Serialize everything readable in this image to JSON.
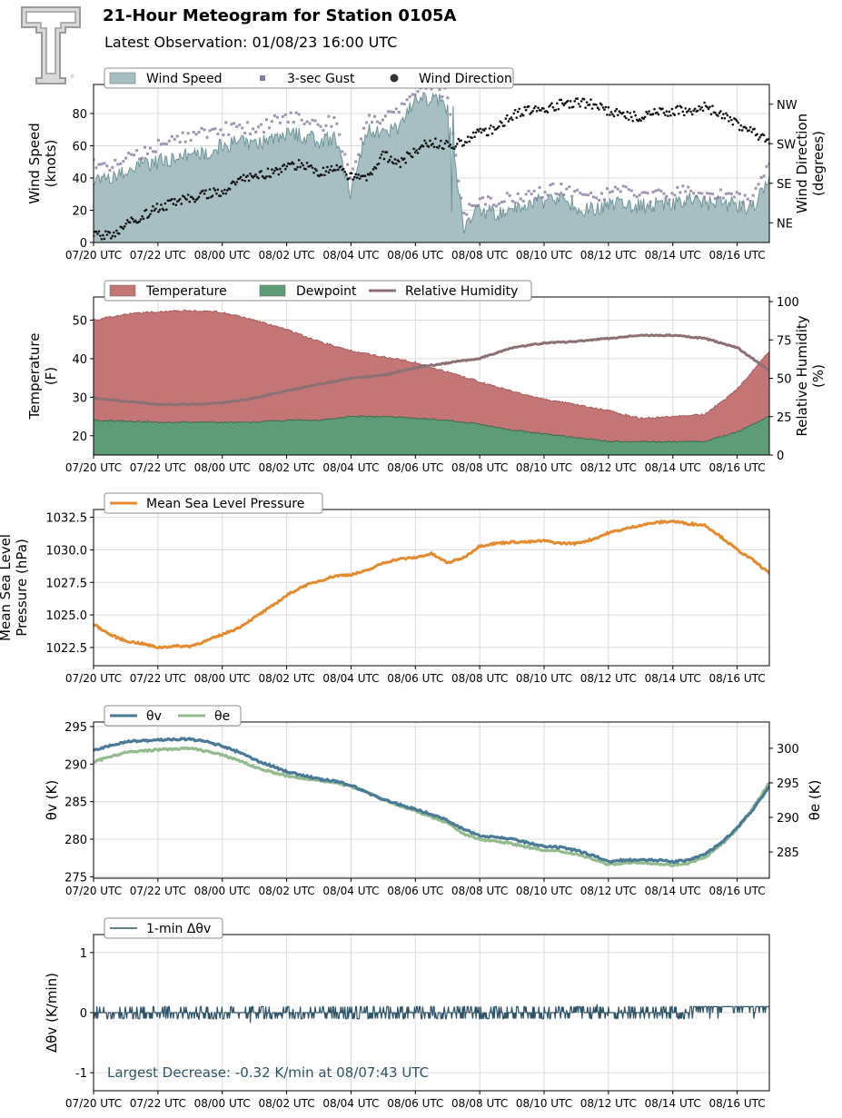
{
  "header": {
    "title": "21-Hour Meteogram for Station 0105A",
    "subtitle": "Latest Observation: 01/08/23 16:00 UTC",
    "logo_icon": "texas-tech-double-t-logo",
    "logo_text": "TT"
  },
  "colors": {
    "wind_speed": "#a7bec3",
    "wind_speed_edge": "#6f9598",
    "gust": "#8a7aa0",
    "wind_dir": "#111111",
    "temperature": "#c47677",
    "temperature_edge": "#a85a5c",
    "dewpoint": "#5e9c77",
    "dewpoint_edge": "#3d6b50",
    "rh": "#8c7073",
    "rh_shadow": "#5e3b3d",
    "mslp": "#e48a2f",
    "theta_v": "#4a7a96",
    "theta_e": "#94bb8e",
    "dtheta": "#2e5266",
    "annotation": "#2e5266",
    "grid": "#dcdcdc"
  },
  "x_ticks": [
    "07/20 UTC",
    "07/22 UTC",
    "08/00 UTC",
    "08/02 UTC",
    "08/04 UTC",
    "08/06 UTC",
    "08/08 UTC",
    "08/10 UTC",
    "08/12 UTC",
    "08/14 UTC",
    "08/16 UTC"
  ],
  "chart_data": [
    {
      "type": "area",
      "name": "wind",
      "ylabel": "Wind Speed\n(knots)",
      "y2label": "Wind Direction\n(degrees)",
      "ylim": [
        0,
        98
      ],
      "yticks": [
        0,
        20,
        40,
        60,
        80
      ],
      "y2ticks": [
        {
          "label": "NE",
          "value": 45
        },
        {
          "label": "SE",
          "value": 135
        },
        {
          "label": "SW",
          "value": 225
        },
        {
          "label": "NW",
          "value": 315
        }
      ],
      "y2lim": [
        0,
        360
      ],
      "legend": [
        "Wind Speed",
        "3-sec Gust",
        "Wind Direction"
      ],
      "legend_placement": "top-left",
      "grid": true,
      "x_hours": [
        19.0,
        19.5,
        20.0,
        20.5,
        21.0,
        21.5,
        22.0,
        22.5,
        23.0,
        23.5,
        24.0,
        24.5,
        25.0,
        25.5,
        26.0,
        26.5,
        27.0,
        27.5,
        28.0,
        28.5,
        29.0,
        29.5,
        30.0,
        30.5,
        31.0,
        31.5,
        32.0,
        32.5,
        33.0,
        33.5,
        34.0,
        34.5,
        35.0,
        35.5,
        36.0,
        36.5,
        37.0,
        37.5,
        38.0,
        38.5,
        39.0,
        39.5,
        40.0
      ],
      "series": [
        {
          "name": "Wind Speed",
          "values": [
            40,
            38,
            44,
            48,
            50,
            52,
            55,
            56,
            60,
            62,
            60,
            64,
            68,
            66,
            63,
            65,
            30,
            70,
            68,
            72,
            88,
            90,
            85,
            10,
            20,
            18,
            22,
            24,
            26,
            28,
            22,
            20,
            24,
            25,
            22,
            24,
            24,
            26,
            25,
            24,
            23,
            22,
            40
          ]
        },
        {
          "name": "3-sec Gust",
          "values": [
            48,
            46,
            52,
            55,
            60,
            62,
            66,
            68,
            70,
            72,
            70,
            74,
            78,
            76,
            73,
            75,
            38,
            78,
            76,
            80,
            95,
            97,
            93,
            18,
            26,
            24,
            28,
            30,
            32,
            34,
            30,
            28,
            30,
            32,
            28,
            30,
            30,
            32,
            31,
            30,
            29,
            28,
            48
          ]
        },
        {
          "name": "Wind Direction",
          "values": [
            20,
            15,
            40,
            60,
            80,
            90,
            100,
            110,
            115,
            140,
            150,
            160,
            170,
            180,
            160,
            170,
            150,
            150,
            200,
            180,
            210,
            230,
            220,
            230,
            250,
            260,
            290,
            300,
            305,
            315,
            320,
            315,
            300,
            290,
            285,
            295,
            300,
            300,
            310,
            290,
            270,
            250,
            230
          ]
        }
      ]
    },
    {
      "type": "area",
      "name": "temperature",
      "ylabel": "Temperature\n(F)",
      "y2label": "Relative Humidity\n(%)",
      "ylim": [
        15,
        56
      ],
      "yticks": [
        20,
        30,
        40,
        50
      ],
      "y2lim": [
        0,
        103
      ],
      "y2ticks": [
        0,
        25,
        50,
        75,
        100
      ],
      "legend": [
        "Temperature",
        "Dewpoint",
        "Relative Humidity"
      ],
      "legend_placement": "top-left",
      "grid": true,
      "x_hours": [
        19.0,
        20.0,
        21.0,
        22.0,
        23.0,
        24.0,
        25.0,
        26.0,
        27.0,
        28.0,
        29.0,
        30.0,
        31.0,
        32.0,
        33.0,
        34.0,
        35.0,
        36.0,
        37.0,
        38.0,
        39.0,
        40.0
      ],
      "series": [
        {
          "name": "Temperature",
          "values": [
            50,
            51.5,
            52.2,
            52.5,
            52,
            50,
            47.5,
            44.5,
            42,
            40.5,
            39,
            36.5,
            34,
            31.5,
            29.5,
            28,
            26.5,
            24.5,
            25,
            25.5,
            32,
            42
          ]
        },
        {
          "name": "Dewpoint",
          "values": [
            24,
            23.8,
            23.5,
            23.5,
            23.5,
            23.5,
            24,
            24,
            25,
            25,
            24.5,
            24,
            23,
            21.5,
            20.5,
            19.5,
            18.5,
            18.5,
            18.5,
            18.5,
            21,
            25
          ]
        },
        {
          "name": "Relative Humidity",
          "values": [
            37,
            35,
            33,
            33,
            34,
            37,
            42,
            46,
            50,
            52,
            57,
            60,
            63,
            70,
            73,
            74,
            76,
            78,
            78,
            76,
            70,
            55
          ]
        }
      ]
    },
    {
      "type": "line",
      "name": "pressure",
      "ylabel": "Mean Sea Level\nPressure (hPa)",
      "ylim": [
        1021.1,
        1033.1
      ],
      "yticks": [
        "1022.5",
        "1025.0",
        "1027.5",
        "1030.0",
        "1032.5"
      ],
      "legend": [
        "Mean Sea Level Pressure"
      ],
      "legend_placement": "top-left",
      "grid": true,
      "x_hours": [
        19.0,
        19.5,
        20.0,
        20.5,
        21.0,
        21.5,
        22.0,
        22.5,
        23.0,
        23.5,
        24.0,
        24.5,
        25.0,
        25.5,
        26.0,
        26.5,
        27.0,
        27.5,
        28.0,
        28.5,
        29.0,
        29.5,
        30.0,
        30.5,
        31.0,
        31.5,
        32.0,
        32.5,
        33.0,
        33.5,
        34.0,
        34.5,
        35.0,
        35.5,
        36.0,
        36.5,
        37.0,
        37.5,
        38.0,
        38.5,
        39.0,
        39.5,
        40.0
      ],
      "series": [
        {
          "name": "Mean Sea Level Pressure",
          "values": [
            1024.3,
            1023.5,
            1023.0,
            1022.8,
            1022.5,
            1022.6,
            1022.6,
            1023.0,
            1023.5,
            1024.0,
            1024.8,
            1025.6,
            1026.5,
            1027.2,
            1027.6,
            1028.0,
            1028.1,
            1028.4,
            1029.0,
            1029.3,
            1029.4,
            1029.7,
            1029.0,
            1029.4,
            1030.3,
            1030.5,
            1030.6,
            1030.6,
            1030.7,
            1030.5,
            1030.5,
            1030.8,
            1031.3,
            1031.6,
            1031.9,
            1032.1,
            1032.2,
            1032.0,
            1031.9,
            1031.0,
            1030.0,
            1029.2,
            1028.2
          ]
        }
      ]
    },
    {
      "type": "line",
      "name": "theta",
      "ylabel": "θv (K)",
      "y2label": "θe (K)",
      "ylim": [
        274.8,
        295.6
      ],
      "yticks": [
        275,
        280,
        285,
        290,
        295
      ],
      "y2lim": [
        281.2,
        303.8
      ],
      "y2ticks": [
        285,
        290,
        295,
        300
      ],
      "legend": [
        "θv",
        "θe"
      ],
      "legend_placement": "top-left",
      "grid": true,
      "x_hours": [
        19.0,
        19.5,
        20.0,
        20.5,
        21.0,
        21.5,
        22.0,
        22.5,
        23.0,
        23.5,
        24.0,
        24.5,
        25.0,
        25.5,
        26.0,
        26.5,
        27.0,
        27.5,
        28.0,
        28.5,
        29.0,
        29.5,
        30.0,
        30.5,
        31.0,
        31.5,
        32.0,
        32.5,
        33.0,
        33.5,
        34.0,
        34.5,
        35.0,
        35.5,
        36.0,
        36.5,
        37.0,
        37.5,
        38.0,
        38.5,
        39.0,
        39.5,
        40.0
      ],
      "series": [
        {
          "name": "θv",
          "values": [
            291.8,
            292.4,
            293.0,
            293.1,
            293.2,
            293.3,
            293.3,
            293.0,
            292.4,
            291.6,
            290.6,
            289.8,
            289.0,
            288.5,
            288.0,
            287.7,
            287.2,
            286.2,
            285.3,
            284.6,
            284.0,
            283.3,
            282.5,
            281.3,
            280.5,
            280.3,
            280.0,
            279.5,
            279.0,
            278.9,
            278.5,
            277.9,
            277.0,
            277.2,
            277.3,
            277.2,
            277.0,
            277.2,
            278.0,
            279.5,
            281.5,
            284.0,
            287.0
          ]
        },
        {
          "name": "θe",
          "values": [
            298.0,
            298.8,
            299.4,
            299.6,
            299.8,
            299.9,
            300.0,
            299.6,
            299.0,
            298.3,
            297.3,
            296.6,
            296.0,
            295.6,
            295.4,
            295.0,
            294.5,
            293.7,
            292.6,
            291.7,
            290.9,
            290.1,
            289.2,
            287.6,
            286.8,
            286.6,
            286.2,
            285.7,
            285.2,
            285.1,
            284.7,
            284.0,
            283.2,
            283.4,
            283.5,
            283.3,
            283.1,
            283.4,
            284.2,
            286.0,
            288.3,
            291.4,
            295.0
          ]
        }
      ]
    },
    {
      "type": "line",
      "name": "dtheta",
      "ylabel": "Δθv (K/min)",
      "ylim": [
        -1.3,
        1.3
      ],
      "yticks": [
        -1,
        0,
        1
      ],
      "legend": [
        "1-min Δθv"
      ],
      "legend_placement": "top-left",
      "grid": true,
      "annotation": "Largest Decrease: -0.32 K/min at 08/07:43 UTC",
      "x_hours": [
        19.0,
        19.5,
        20.0,
        20.5,
        21.0,
        21.5,
        22.0,
        22.5,
        23.0,
        23.5,
        24.0,
        24.5,
        25.0,
        25.5,
        26.0,
        26.5,
        27.0,
        27.5,
        28.0,
        28.5,
        29.0,
        29.5,
        30.0,
        30.5,
        31.0,
        31.5,
        32.0,
        32.5,
        33.0,
        33.5,
        34.0,
        34.5,
        35.0,
        35.5,
        36.0,
        36.5,
        37.0,
        37.5,
        38.0,
        38.5,
        39.0,
        39.5,
        40.0
      ],
      "series": [
        {
          "name": "1-min Δθv",
          "values": [
            0.0,
            0.15,
            -0.1,
            0.1,
            -0.15,
            0.1,
            0.0,
            -0.1,
            0.1,
            0.0,
            -0.1,
            0.1,
            0.0,
            0.1,
            -0.1,
            0.0,
            0.05,
            0.0,
            0.15,
            -0.05,
            0.1,
            -0.1,
            0.0,
            0.1,
            -0.32,
            0.1,
            0.0,
            -0.1,
            0.1,
            -0.1,
            0.0,
            0.1,
            -0.1,
            0.0,
            0.1,
            0.0,
            -0.1,
            0.0,
            0.05,
            0.05,
            0.1,
            0.2,
            0.15
          ]
        }
      ]
    }
  ]
}
